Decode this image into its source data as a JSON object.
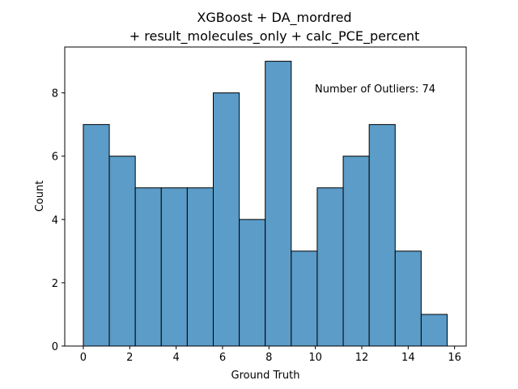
{
  "chart_data": {
    "type": "bar",
    "title_line1": "XGBoost + DA_mordred",
    "title_line2": "+ result_molecules_only + calc_PCE_percent",
    "xlabel": "Ground Truth",
    "ylabel": "Count",
    "annotation": "Number of Outliers: 74",
    "bin_edges": [
      0.0,
      1.12,
      2.24,
      3.36,
      4.48,
      5.6,
      6.72,
      7.84,
      8.96,
      10.08,
      11.2,
      12.32,
      13.44,
      14.56,
      15.68
    ],
    "values": [
      7,
      6,
      5,
      5,
      5,
      8,
      4,
      9,
      3,
      5,
      6,
      7,
      3,
      1
    ],
    "xlim": [
      -0.8,
      16.5
    ],
    "ylim": [
      0,
      9.45
    ],
    "xticks": [
      0,
      2,
      4,
      6,
      8,
      10,
      12,
      14,
      16
    ],
    "yticks": [
      0,
      2,
      4,
      6,
      8
    ],
    "grid": false,
    "bar_color": "#5b9cc8",
    "edge_color": "#000000"
  }
}
